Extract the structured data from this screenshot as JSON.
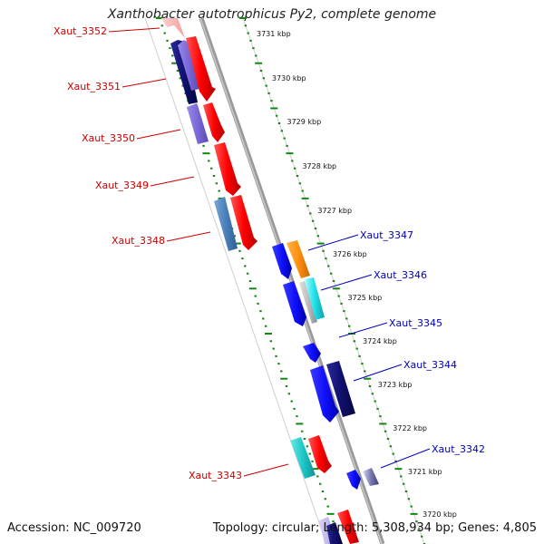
{
  "title": "Xanthobacter autotrophicus Py2, complete genome",
  "footer": {
    "accession": "Accession: NC_009720",
    "summary": "Topology: circular; Length: 5,308,934 bp; Genes: 4,805"
  },
  "kbp_ticks": [
    "3731 kbp",
    "3730 kbp",
    "3729 kbp",
    "3728 kbp",
    "3727 kbp",
    "3726 kbp",
    "3725 kbp",
    "3724 kbp",
    "3723 kbp",
    "3722 kbp",
    "3721 kbp",
    "3720 kbp"
  ],
  "genes_left": [
    {
      "label": "Xaut_3352"
    },
    {
      "label": "Xaut_3351"
    },
    {
      "label": "Xaut_3350"
    },
    {
      "label": "Xaut_3349"
    },
    {
      "label": "Xaut_3348"
    },
    {
      "label": "Xaut_3343"
    }
  ],
  "genes_right": [
    {
      "label": "Xaut_3347"
    },
    {
      "label": "Xaut_3346"
    },
    {
      "label": "Xaut_3345"
    },
    {
      "label": "Xaut_3344"
    },
    {
      "label": "Xaut_3342"
    }
  ],
  "colors": {
    "left_label": "#cc0000",
    "right_label": "#0000bb",
    "dots": "#118811",
    "backbone": "#888888"
  }
}
